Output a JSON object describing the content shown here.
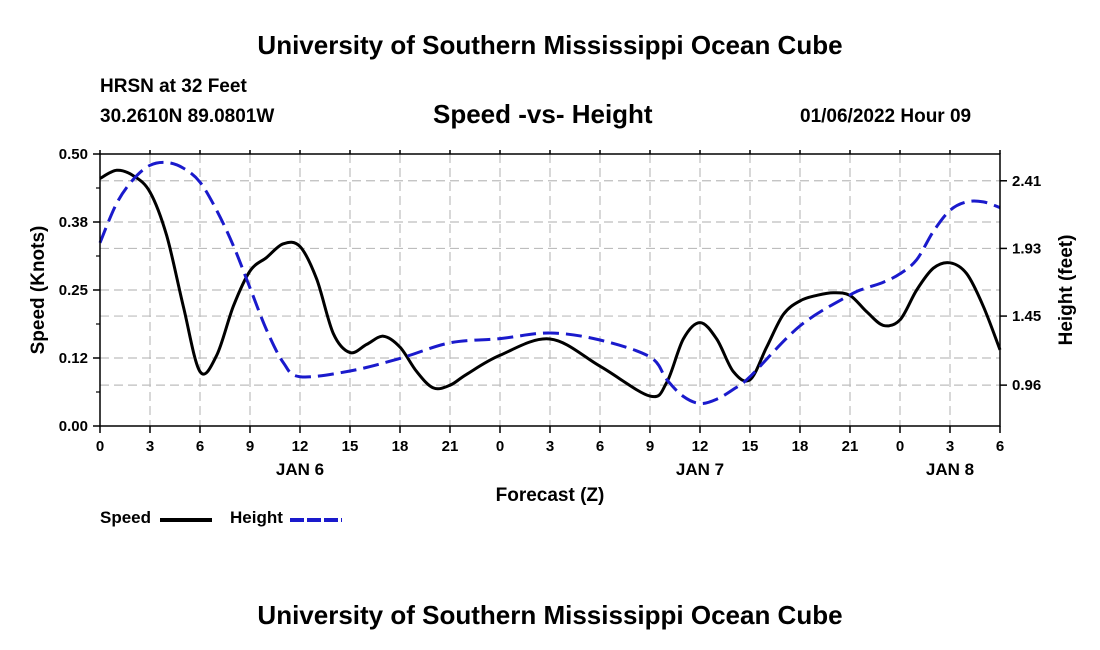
{
  "page": {
    "top_title": "University of Southern Mississippi Ocean Cube",
    "bottom_title": "University of Southern Mississippi Ocean Cube",
    "station": "HRSN at 32 Feet",
    "coordinates": "30.2610N  89.0801W",
    "datetime": "01/06/2022 Hour 09"
  },
  "colors": {
    "speed": "#000000",
    "height": "#1a1acc",
    "grid": "#bdbdbd"
  },
  "chart_data": {
    "type": "line",
    "title": "Speed -vs- Height",
    "xlabel": "Forecast (Z)",
    "ylabel": "Speed (Knots)",
    "y2label": "Height (feet)",
    "x_unit": "forecast hours",
    "xlim": [
      0,
      54
    ],
    "ylim": [
      0,
      0.5
    ],
    "y2lim": [
      0.67,
      2.6
    ],
    "x_ticks": [
      0,
      3,
      6,
      9,
      12,
      15,
      18,
      21,
      24,
      27,
      30,
      33,
      36,
      39,
      42,
      45,
      48,
      51,
      54
    ],
    "x_tick_labels": [
      "0",
      "3",
      "6",
      "9",
      "12",
      "15",
      "18",
      "21",
      "0",
      "3",
      "6",
      "9",
      "12",
      "15",
      "18",
      "21",
      "0",
      "3",
      "6"
    ],
    "y_ticks": [
      0,
      0.125,
      0.25,
      0.375,
      0.5
    ],
    "y_tick_labels": [
      "0.00",
      "0.12",
      "0.25",
      "0.38",
      "0.50"
    ],
    "y2_ticks": [
      0.96,
      1.45,
      1.93,
      2.41
    ],
    "y2_tick_labels": [
      "0.96",
      "1.45",
      "1.93",
      "2.41"
    ],
    "day_labels": [
      {
        "x": 12,
        "label": "JAN 6"
      },
      {
        "x": 36,
        "label": "JAN 7"
      },
      {
        "x": 51,
        "label": "JAN 8"
      }
    ],
    "legend": [
      {
        "name": "Speed",
        "style": "solid"
      },
      {
        "name": "Height",
        "style": "dashed"
      }
    ],
    "series": [
      {
        "name": "Speed",
        "axis": "left",
        "style": "solid",
        "x": [
          0,
          1,
          2,
          3,
          4,
          5,
          6,
          7,
          8,
          9,
          10,
          11,
          12,
          13,
          14,
          15,
          16,
          17,
          18,
          19,
          20,
          21,
          22,
          24,
          27,
          30,
          33,
          34,
          35,
          36,
          37,
          38,
          39,
          40,
          41,
          42,
          43,
          44,
          45,
          46,
          47,
          48,
          49,
          50,
          51,
          52,
          53,
          54
        ],
        "values": [
          0.455,
          0.47,
          0.46,
          0.43,
          0.35,
          0.22,
          0.1,
          0.13,
          0.22,
          0.285,
          0.31,
          0.335,
          0.33,
          0.27,
          0.17,
          0.135,
          0.15,
          0.165,
          0.145,
          0.1,
          0.07,
          0.075,
          0.095,
          0.13,
          0.16,
          0.11,
          0.055,
          0.08,
          0.16,
          0.19,
          0.16,
          0.1,
          0.085,
          0.145,
          0.205,
          0.23,
          0.24,
          0.245,
          0.24,
          0.21,
          0.185,
          0.195,
          0.25,
          0.29,
          0.3,
          0.28,
          0.22,
          0.14
        ]
      },
      {
        "name": "Height",
        "axis": "right",
        "style": "dashed",
        "x": [
          0,
          1,
          2,
          3,
          4,
          5,
          6,
          7,
          8,
          9,
          10,
          11,
          12,
          15,
          18,
          21,
          24,
          27,
          30,
          33,
          34,
          35,
          36,
          37,
          38,
          39,
          42,
          45,
          46,
          47,
          48,
          49,
          50,
          51,
          52,
          53,
          54
        ],
        "values": [
          1.97,
          2.25,
          2.42,
          2.52,
          2.54,
          2.5,
          2.4,
          2.2,
          1.95,
          1.65,
          1.35,
          1.12,
          1.02,
          1.06,
          1.15,
          1.26,
          1.29,
          1.33,
          1.28,
          1.16,
          1.0,
          0.88,
          0.83,
          0.86,
          0.93,
          1.02,
          1.38,
          1.6,
          1.65,
          1.69,
          1.75,
          1.85,
          2.05,
          2.2,
          2.26,
          2.26,
          2.22
        ]
      }
    ]
  }
}
